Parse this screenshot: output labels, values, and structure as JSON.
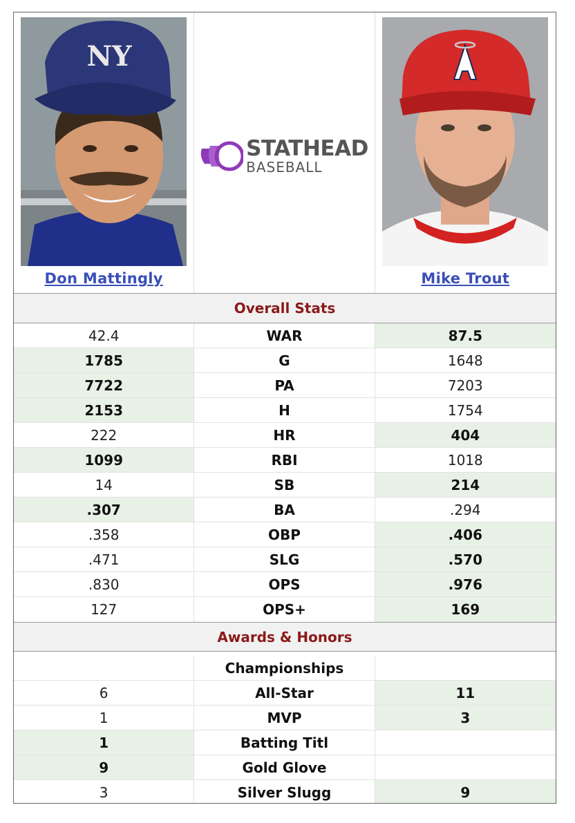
{
  "players": {
    "left": {
      "name": "Don Mattingly"
    },
    "right": {
      "name": "Mike Trout"
    }
  },
  "logo": {
    "line1": "STATHEAD",
    "line2": "BASEBALL",
    "accent_color": "#8e3ab8"
  },
  "sections": {
    "overall": "Overall Stats",
    "awards": "Awards & Honors"
  },
  "colors": {
    "winner_bg": "#e8f1e6",
    "section_title": "#8b1a1a",
    "link": "#3a4fb8"
  },
  "overall_stats": [
    {
      "stat": "WAR",
      "left": "42.4",
      "right": "87.5",
      "winner": "right"
    },
    {
      "stat": "G",
      "left": "1785",
      "right": "1648",
      "winner": "left"
    },
    {
      "stat": "PA",
      "left": "7722",
      "right": "7203",
      "winner": "left"
    },
    {
      "stat": "H",
      "left": "2153",
      "right": "1754",
      "winner": "left"
    },
    {
      "stat": "HR",
      "left": "222",
      "right": "404",
      "winner": "right"
    },
    {
      "stat": "RBI",
      "left": "1099",
      "right": "1018",
      "winner": "left"
    },
    {
      "stat": "SB",
      "left": "14",
      "right": "214",
      "winner": "right"
    },
    {
      "stat": "BA",
      "left": ".307",
      "right": ".294",
      "winner": "left"
    },
    {
      "stat": "OBP",
      "left": ".358",
      "right": ".406",
      "winner": "right"
    },
    {
      "stat": "SLG",
      "left": ".471",
      "right": ".570",
      "winner": "right"
    },
    {
      "stat": "OPS",
      "left": ".830",
      "right": ".976",
      "winner": "right"
    },
    {
      "stat": "OPS+",
      "left": "127",
      "right": "169",
      "winner": "right"
    }
  ],
  "awards": [
    {
      "stat": "Championships",
      "left": "",
      "right": "",
      "winner": "none"
    },
    {
      "stat": "All-Star",
      "left": "6",
      "right": "11",
      "winner": "right"
    },
    {
      "stat": "MVP",
      "left": "1",
      "right": "3",
      "winner": "right"
    },
    {
      "stat": "Batting Titl",
      "left": "1",
      "right": "",
      "winner": "left"
    },
    {
      "stat": "Gold Glove",
      "left": "9",
      "right": "",
      "winner": "left"
    },
    {
      "stat": "Silver Slugg",
      "left": "3",
      "right": "9",
      "winner": "right"
    }
  ]
}
